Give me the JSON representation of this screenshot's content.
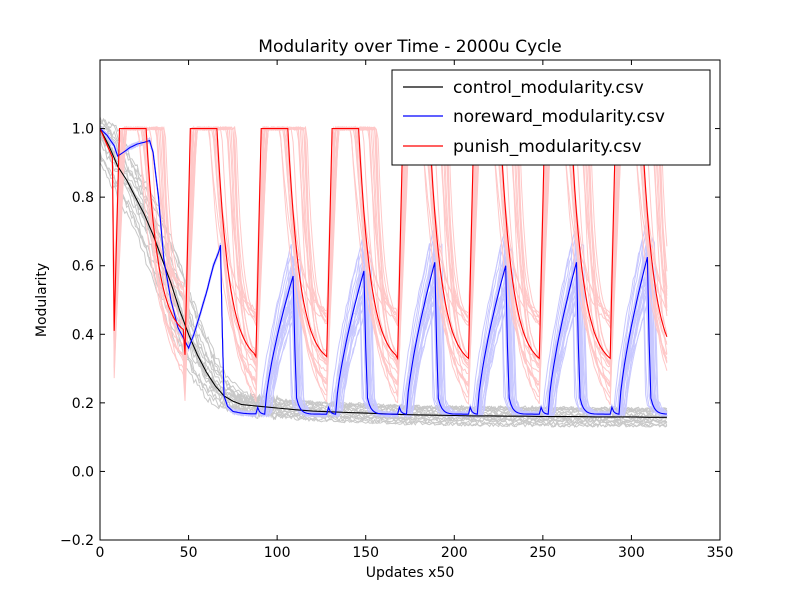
{
  "chart_data": {
    "type": "line",
    "title": "Modularity over Time - 2000u Cycle",
    "xlabel": "Updates x50",
    "ylabel": "Modularity",
    "xlim": [
      0,
      350
    ],
    "ylim": [
      -0.2,
      1.2
    ],
    "xticks": [
      0,
      50,
      100,
      150,
      200,
      250,
      300,
      350
    ],
    "yticks": [
      -0.2,
      0.0,
      0.2,
      0.4,
      0.6,
      0.8,
      1.0
    ],
    "xtick_labels": [
      "0",
      "50",
      "100",
      "150",
      "200",
      "250",
      "300",
      "350"
    ],
    "ytick_labels": [
      "−0.2",
      "0.0",
      "0.2",
      "0.4",
      "0.6",
      "0.8",
      "1.0"
    ],
    "grid": false,
    "legend_position": "top-right",
    "series": [
      {
        "name": "control_modularity.csv",
        "color": "#000000",
        "replicate_color": "#c8c8c8",
        "x": [
          0,
          5,
          10,
          15,
          20,
          25,
          30,
          35,
          40,
          45,
          50,
          55,
          60,
          65,
          70,
          75,
          80,
          90,
          100,
          110,
          120,
          130,
          140,
          150,
          160,
          170,
          180,
          190,
          200,
          210,
          220,
          230,
          240,
          250,
          260,
          270,
          280,
          290,
          300,
          310,
          320
        ],
        "y": [
          1.0,
          0.95,
          0.89,
          0.85,
          0.8,
          0.75,
          0.69,
          0.62,
          0.55,
          0.47,
          0.4,
          0.34,
          0.29,
          0.25,
          0.22,
          0.205,
          0.195,
          0.19,
          0.185,
          0.18,
          0.176,
          0.174,
          0.172,
          0.17,
          0.168,
          0.166,
          0.165,
          0.164,
          0.163,
          0.162,
          0.162,
          0.161,
          0.161,
          0.16,
          0.16,
          0.16,
          0.159,
          0.159,
          0.159,
          0.158,
          0.158
        ]
      },
      {
        "name": "noreward_modularity.csv",
        "color": "#0000ff",
        "replicate_color": "#c8c8ff",
        "cycle_minima_y": [
          0.165
        ],
        "cycle_peak_y": [
          0.66,
          0.57,
          0.585,
          0.61,
          0.6,
          0.61,
          0.625
        ],
        "early_x": [
          0,
          4,
          8,
          10,
          13,
          17,
          21,
          25,
          28,
          30,
          33,
          36,
          40,
          44,
          48,
          50,
          53,
          56,
          60,
          64,
          67,
          68,
          69,
          70,
          72,
          75,
          80,
          85,
          89
        ],
        "early_y": [
          1.0,
          0.98,
          0.95,
          0.92,
          0.93,
          0.945,
          0.955,
          0.96,
          0.965,
          0.93,
          0.8,
          0.62,
          0.5,
          0.42,
          0.38,
          0.36,
          0.4,
          0.45,
          0.52,
          0.6,
          0.64,
          0.66,
          0.42,
          0.22,
          0.19,
          0.175,
          0.17,
          0.168,
          0.168
        ]
      },
      {
        "name": "punish_modularity.csv",
        "color": "#ff0000",
        "replicate_color": "#ffc8c8",
        "cycle_minima_y": [
          0.41,
          0.34,
          0.335,
          0.335,
          0.33,
          0.33,
          0.33,
          0.33,
          0.32,
          0.41
        ],
        "cycle_peak_y": [
          1.0
        ]
      }
    ]
  }
}
